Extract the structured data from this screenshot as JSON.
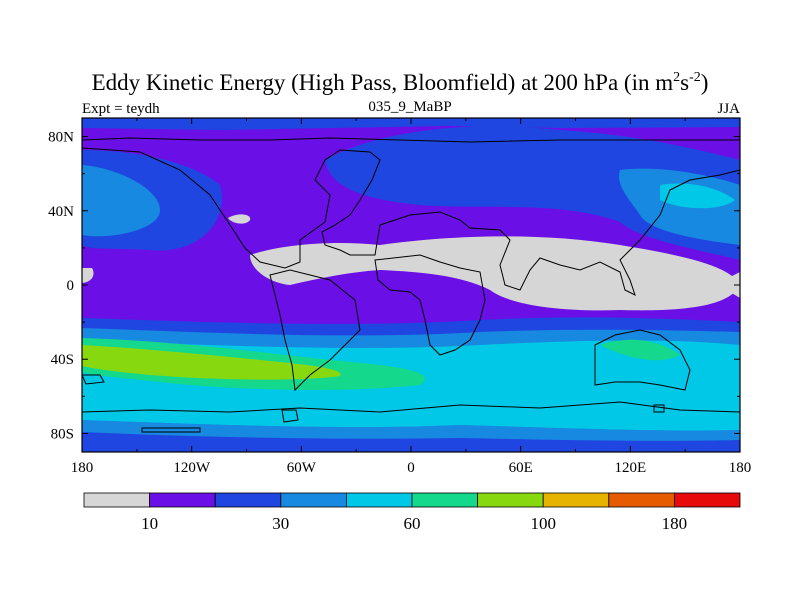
{
  "title": {
    "main": "Eddy Kinetic Energy (High Pass, Bloomfield) at 200 hPa (in m",
    "sup1": "2",
    "mid": "s",
    "sup2": "-2",
    "close": ")"
  },
  "subtitle": {
    "left": "Expt = teydh",
    "center": "035_9_MaBP",
    "right": "JJA"
  },
  "map": {
    "lat_labels": [
      "80N",
      "40N",
      "0",
      "40S",
      "80S"
    ],
    "lon_labels": [
      "180",
      "120W",
      "60W",
      "0",
      "60E",
      "120E",
      "180"
    ],
    "lat_values": [
      80,
      40,
      0,
      -40,
      -80
    ],
    "lon_values": [
      -180,
      -120,
      -60,
      0,
      60,
      120,
      180
    ]
  },
  "colorbar": {
    "labels": [
      "10",
      "30",
      "60",
      "100",
      "180"
    ],
    "colors": [
      "#d6d6d6",
      "#6a10e6",
      "#1f46e0",
      "#1789e0",
      "#00c8e6",
      "#14d88c",
      "#88d810",
      "#e6b400",
      "#e65a00",
      "#e60a0a"
    ]
  },
  "colors": {
    "coast": "#000000",
    "background": "#ffffff"
  }
}
